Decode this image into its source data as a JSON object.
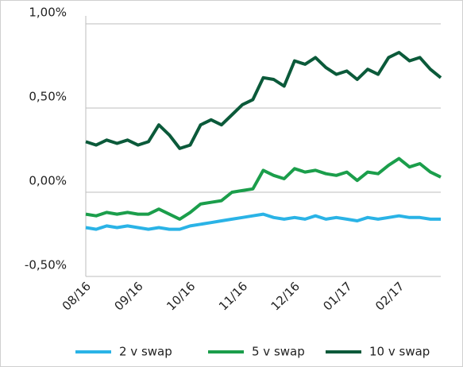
{
  "chart_data": {
    "type": "line",
    "categories": [
      "08/16",
      null,
      null,
      null,
      null,
      "09/16",
      null,
      null,
      null,
      null,
      "10/16",
      null,
      null,
      null,
      null,
      "11/16",
      null,
      null,
      null,
      null,
      "12/16",
      null,
      null,
      null,
      null,
      "01/17",
      null,
      null,
      null,
      null,
      "02/17",
      null,
      null,
      null,
      null
    ],
    "series": [
      {
        "name": "2 v swap",
        "color": "#2ab3e6",
        "values": [
          -0.21,
          -0.22,
          -0.2,
          -0.21,
          -0.2,
          -0.21,
          -0.22,
          -0.21,
          -0.22,
          -0.22,
          -0.2,
          -0.19,
          -0.18,
          -0.17,
          -0.16,
          -0.15,
          -0.14,
          -0.13,
          -0.15,
          -0.16,
          -0.15,
          -0.16,
          -0.14,
          -0.16,
          -0.15,
          -0.16,
          -0.17,
          -0.15,
          -0.16,
          -0.15,
          -0.14,
          -0.15,
          -0.15,
          -0.16,
          -0.16
        ]
      },
      {
        "name": "5 v swap",
        "color": "#1b9e4b",
        "values": [
          -0.13,
          -0.14,
          -0.12,
          -0.13,
          -0.12,
          -0.13,
          -0.13,
          -0.1,
          -0.13,
          -0.16,
          -0.12,
          -0.07,
          -0.06,
          -0.05,
          0.0,
          0.01,
          0.02,
          0.13,
          0.1,
          0.08,
          0.14,
          0.12,
          0.13,
          0.11,
          0.1,
          0.12,
          0.07,
          0.12,
          0.11,
          0.16,
          0.2,
          0.15,
          0.17,
          0.12,
          0.09
        ]
      },
      {
        "name": "10 v swap",
        "color": "#0b5a3a",
        "values": [
          0.3,
          0.28,
          0.31,
          0.29,
          0.31,
          0.28,
          0.3,
          0.4,
          0.34,
          0.26,
          0.28,
          0.4,
          0.43,
          0.4,
          0.46,
          0.52,
          0.55,
          0.68,
          0.67,
          0.63,
          0.78,
          0.76,
          0.8,
          0.74,
          0.7,
          0.72,
          0.67,
          0.73,
          0.7,
          0.8,
          0.83,
          0.78,
          0.8,
          0.73,
          0.68
        ]
      }
    ],
    "ylim": [
      -0.5,
      1.0
    ],
    "yticks": [
      {
        "value": -0.5,
        "label": "-0,50%"
      },
      {
        "value": 0,
        "label": "0,00%"
      },
      {
        "value": 0.5,
        "label": "0,50%"
      },
      {
        "value": 1.0,
        "label": "1,00%"
      }
    ],
    "grid": true,
    "legend": "bottom"
  }
}
